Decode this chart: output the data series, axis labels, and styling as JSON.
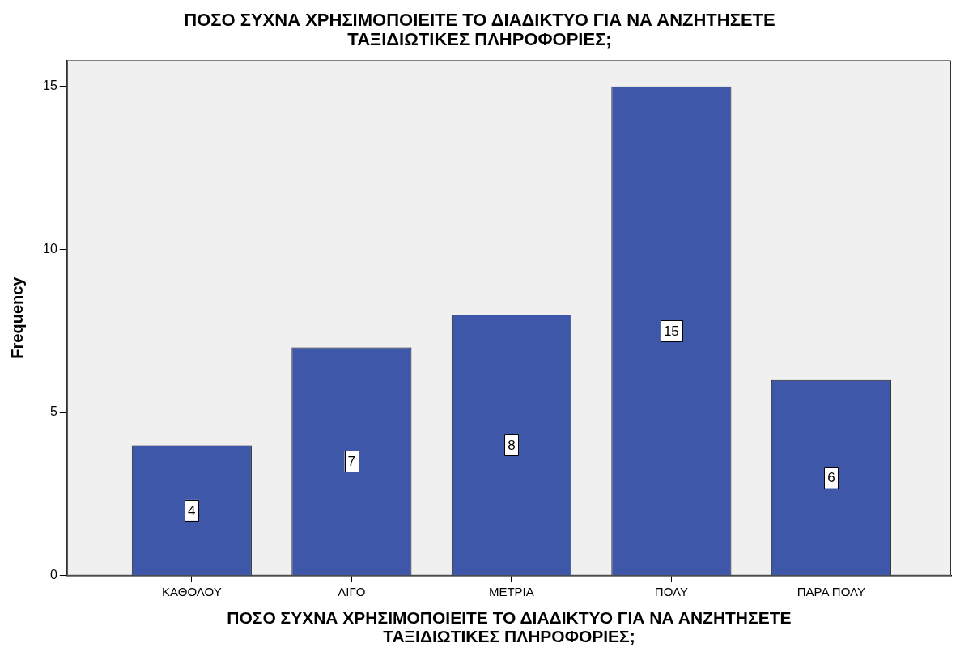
{
  "chart_data": {
    "type": "bar",
    "title": "ΠΟΣΟ ΣΥΧΝΑ ΧΡΗΣΙΜΟΠΟΙΕΙΤΕ ΤΟ ΔΙΑΔΙΚΤΥΟ ΓΙΑ ΝΑ ΑΝΖΗΤΗΣΕΤΕ\nΤΑΞΙΔΙΩΤΙΚΕΣ ΠΛΗΡΟΦΟΡΙΕΣ;",
    "xlabel": "ΠΟΣΟ ΣΥΧΝΑ ΧΡΗΣΙΜΟΠΟΙΕΙΤΕ ΤΟ ΔΙΑΔΙΚΤΥΟ ΓΙΑ ΝΑ ΑΝΖΗΤΗΣΕΤΕ\nΤΑΞΙΔΙΩΤΙΚΕΣ ΠΛΗΡΟΦΟΡΙΕΣ;",
    "ylabel": "Frequency",
    "categories": [
      "ΚΑΘΟΛΟΥ",
      "ΛΙΓΟ",
      "ΜΕΤΡΙΑ",
      "ΠΟΛΥ",
      "ΠΑΡΑ ΠΟΛΥ"
    ],
    "values": [
      4,
      7,
      8,
      15,
      6
    ],
    "color": "#3e57a9",
    "ylim": [
      0,
      15.8
    ],
    "yticks": [
      0,
      5,
      10,
      15
    ],
    "data_labels": true
  }
}
